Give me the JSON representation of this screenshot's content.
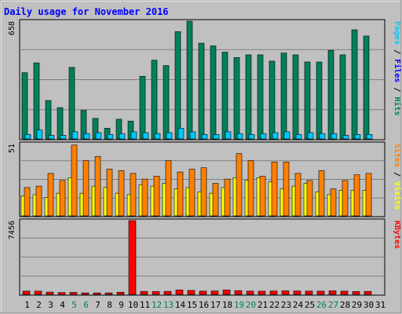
{
  "chart_data": {
    "type": "bar",
    "title": "Daily usage for November 2016",
    "days": [
      "1",
      "2",
      "3",
      "4",
      "5",
      "6",
      "7",
      "8",
      "9",
      "10",
      "11",
      "12",
      "13",
      "14",
      "15",
      "16",
      "17",
      "18",
      "19",
      "20",
      "21",
      "22",
      "23",
      "24",
      "25",
      "26",
      "27",
      "28",
      "29",
      "30",
      "31"
    ],
    "weekend_days": [
      "5",
      "6",
      "12",
      "13",
      "19",
      "20",
      "26",
      "27"
    ],
    "panels": [
      {
        "id": "hits",
        "ymax_label": "658",
        "ymax": 658,
        "legend": [
          "Pages",
          "Files",
          "Hits"
        ],
        "series": [
          {
            "name": "Hits",
            "color": "#00805c",
            "values": [
              370,
              425,
              215,
              175,
              400,
              160,
              115,
              60,
              110,
              100,
              350,
              440,
              410,
              600,
              658,
              535,
              520,
              485,
              455,
              470,
              470,
              435,
              480,
              470,
              430,
              430,
              495,
              470,
              610,
              575,
              null
            ]
          },
          {
            "name": "Files",
            "color": "#00a0ff",
            "values": [
              0,
              0,
              0,
              0,
              0,
              0,
              0,
              0,
              0,
              0,
              0,
              0,
              0,
              0,
              0,
              0,
              0,
              0,
              0,
              0,
              0,
              0,
              0,
              0,
              0,
              0,
              0,
              0,
              0,
              0,
              null
            ]
          },
          {
            "name": "Pages",
            "color": "#00c8ff",
            "values": [
              25,
              50,
              20,
              20,
              40,
              30,
              35,
              25,
              30,
              40,
              35,
              30,
              35,
              60,
              40,
              25,
              25,
              40,
              30,
              25,
              30,
              35,
              40,
              25,
              35,
              30,
              30,
              20,
              25,
              25,
              null
            ]
          }
        ]
      },
      {
        "id": "visits",
        "ymax_label": "51",
        "ymax": 51,
        "legend": [
          "Sites",
          "Visits"
        ],
        "series": [
          {
            "name": "Visits",
            "color": "#ff8000",
            "values": [
              20,
              21,
              30,
              25,
              50,
              39,
              42,
              33,
              32,
              30,
              26,
              28,
              39,
              31,
              33,
              34,
              23,
              26,
              44,
              39,
              28,
              38,
              38,
              30,
              25,
              32,
              19,
              25,
              29,
              30,
              null
            ]
          },
          {
            "name": "Sites",
            "color": "#ffff00",
            "values": [
              14,
              15,
              13,
              16,
              27,
              16,
              21,
              20,
              16,
              15,
              22,
              21,
              23,
              19,
              20,
              17,
              16,
              20,
              27,
              25,
              27,
              24,
              19,
              21,
              23,
              17,
              15,
              18,
              18,
              18,
              null
            ]
          }
        ]
      },
      {
        "id": "kbytes",
        "ymax_label": "7456",
        "ymax": 7456,
        "legend": [
          "KBytes"
        ],
        "series": [
          {
            "name": "KBytes",
            "color": "#ff0000",
            "values": [
              330,
              330,
              230,
              180,
              200,
              150,
              150,
              150,
              220,
              7456,
              300,
              290,
              300,
              450,
              400,
              330,
              340,
              450,
              380,
              330,
              320,
              340,
              360,
              340,
              330,
              330,
              360,
              330,
              290,
              300,
              null
            ]
          }
        ]
      }
    ]
  }
}
